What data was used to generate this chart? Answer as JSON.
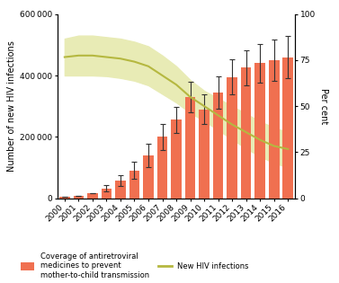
{
  "years": [
    2000,
    2001,
    2002,
    2003,
    2004,
    2005,
    2006,
    2007,
    2008,
    2009,
    2010,
    2011,
    2012,
    2013,
    2014,
    2015,
    2016
  ],
  "bar_values": [
    5000,
    7000,
    16000,
    32000,
    58000,
    90000,
    140000,
    200000,
    255000,
    330000,
    290000,
    345000,
    395000,
    425000,
    440000,
    450000,
    460000
  ],
  "bar_errors_low": [
    1000,
    2000,
    5000,
    10000,
    18000,
    28000,
    38000,
    42000,
    42000,
    50000,
    48000,
    52000,
    58000,
    58000,
    62000,
    68000,
    68000
  ],
  "bar_errors_high": [
    1000,
    2000,
    5000,
    10000,
    18000,
    28000,
    38000,
    42000,
    42000,
    50000,
    48000,
    52000,
    58000,
    58000,
    62000,
    68000,
    68000
  ],
  "hiv_line": [
    460000,
    465000,
    465000,
    460000,
    455000,
    445000,
    430000,
    400000,
    370000,
    330000,
    300000,
    270000,
    240000,
    215000,
    190000,
    170000,
    160000
  ],
  "hiv_upper": [
    520000,
    530000,
    530000,
    525000,
    520000,
    510000,
    495000,
    465000,
    430000,
    385000,
    350000,
    325000,
    300000,
    275000,
    250000,
    230000,
    215000
  ],
  "hiv_lower": [
    400000,
    400000,
    400000,
    398000,
    392000,
    383000,
    368000,
    340000,
    312000,
    278000,
    252000,
    222000,
    192000,
    162000,
    136000,
    115000,
    100000
  ],
  "bar_color": "#f07050",
  "bar_error_color": "#333333",
  "line_color": "#b5b840",
  "band_color": "#e8ebb5",
  "background_color": "#ffffff",
  "ylabel_left": "Number of new HIV infections",
  "ylabel_right": "Per cent",
  "ylim_left": [
    0,
    600000
  ],
  "ylim_right": [
    0,
    100
  ],
  "yticks_left": [
    0,
    200000,
    400000,
    600000
  ],
  "yticks_right": [
    0,
    25,
    50,
    75,
    100
  ],
  "legend_bar_label": "Coverage of antiretroviral\nmedicines to prevent\nmother-to-child transmission",
  "legend_line_label": "New HIV infections"
}
